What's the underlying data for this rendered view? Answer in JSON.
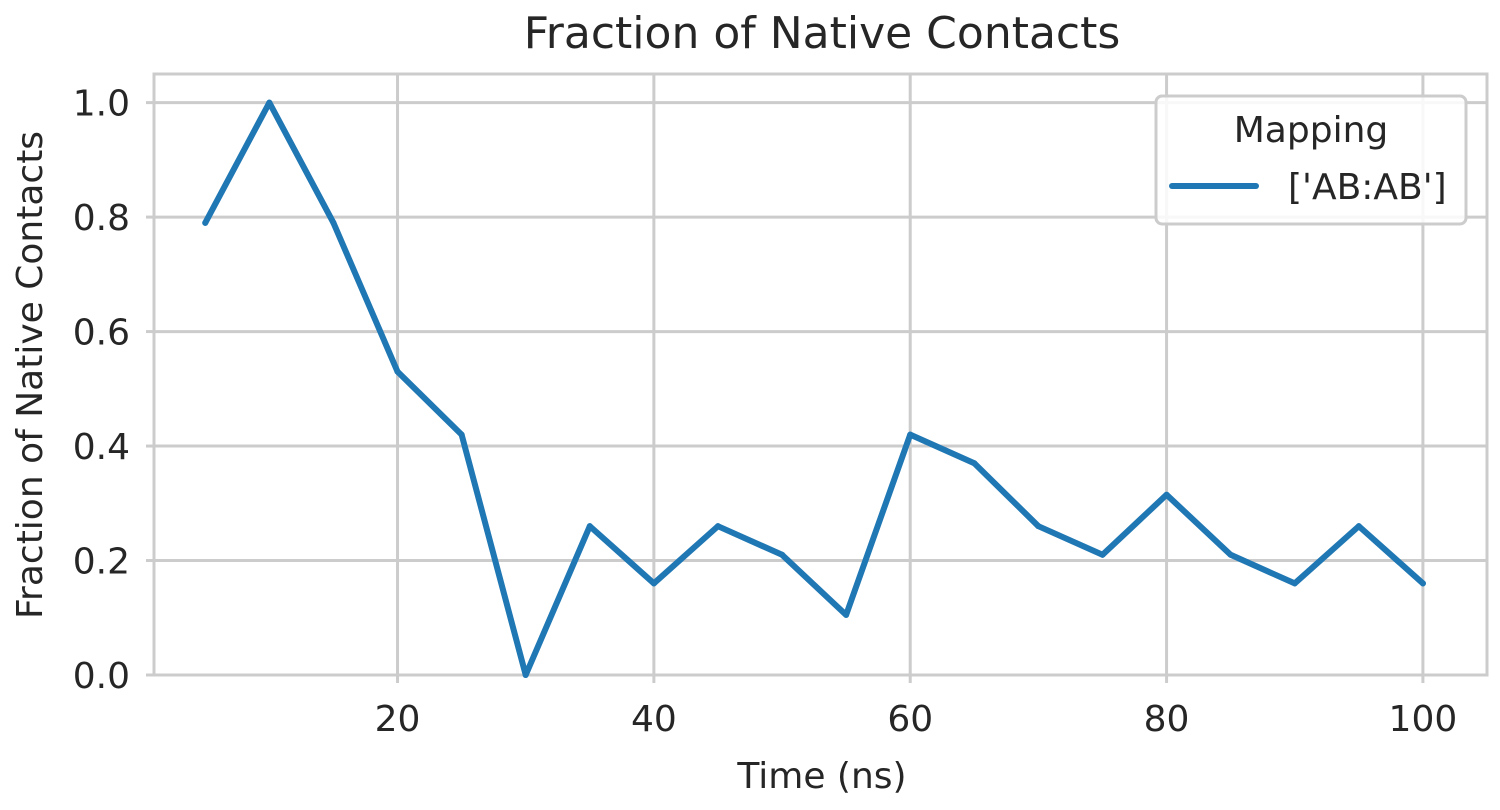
{
  "chart_data": {
    "type": "line",
    "title": "Fraction of Native Contacts",
    "xlabel": "Time (ns)",
    "ylabel": "Fraction of Native Contacts",
    "xlim": [
      1,
      105
    ],
    "ylim": [
      0,
      1.05
    ],
    "xticks": [
      20,
      40,
      60,
      80,
      100
    ],
    "yticks": [
      0.0,
      0.2,
      0.4,
      0.6,
      0.8,
      1.0
    ],
    "xtick_labels": [
      "20",
      "40",
      "60",
      "80",
      "100"
    ],
    "ytick_labels": [
      "0.0",
      "0.2",
      "0.4",
      "0.6",
      "0.8",
      "1.0"
    ],
    "grid": true,
    "legend": {
      "title": "Mapping",
      "placement": "top-right"
    },
    "x": [
      5,
      10,
      15,
      20,
      25,
      30,
      35,
      40,
      45,
      50,
      55,
      60,
      65,
      70,
      75,
      80,
      85,
      90,
      95,
      100
    ],
    "series": [
      {
        "name": "['AB:AB']",
        "color": "#1f77b4",
        "values": [
          0.79,
          1.0,
          0.79,
          0.53,
          0.42,
          0.0,
          0.26,
          0.16,
          0.26,
          0.21,
          0.105,
          0.42,
          0.37,
          0.26,
          0.21,
          0.315,
          0.21,
          0.16,
          0.26,
          0.16
        ]
      }
    ]
  }
}
